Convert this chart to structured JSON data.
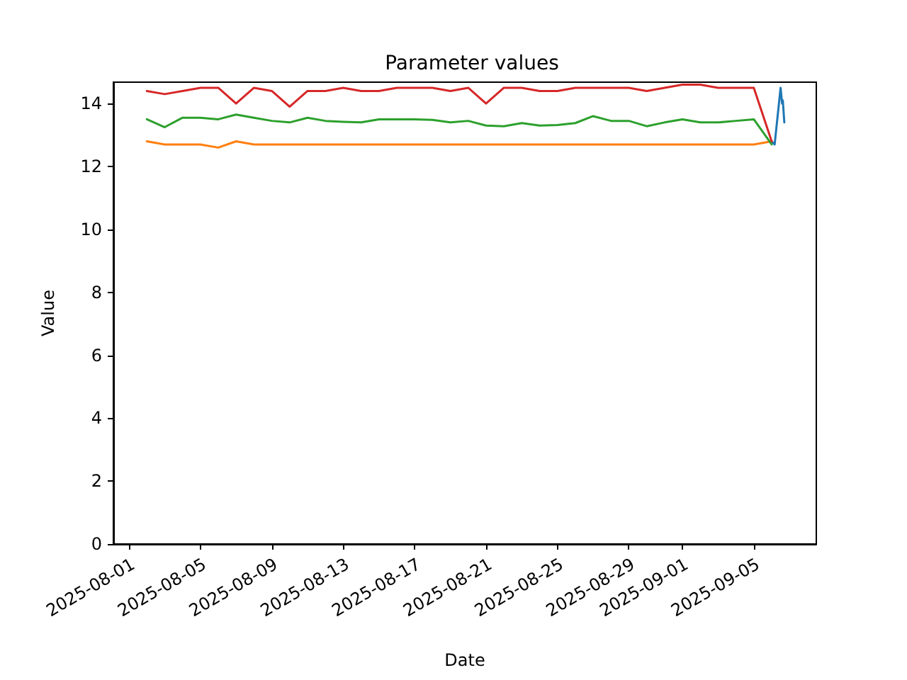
{
  "chart_data": {
    "type": "line",
    "title": "Parameter values",
    "xlabel": "Date",
    "ylabel": "Value",
    "xlim": [
      "2025-07-31T03:00",
      "2025-09-08T12:00"
    ],
    "xticks": [
      "2025-08-01",
      "2025-08-05",
      "2025-08-09",
      "2025-08-13",
      "2025-08-17",
      "2025-08-21",
      "2025-08-25",
      "2025-08-29",
      "2025-09-01",
      "2025-09-05"
    ],
    "ylim": [
      0,
      14.68
    ],
    "yticks": [
      0,
      2,
      4,
      6,
      8,
      10,
      12,
      14
    ],
    "grid": false,
    "marker": "none",
    "line_style": "solid",
    "x": [
      "2025-08-02",
      "2025-08-03",
      "2025-08-04",
      "2025-08-05",
      "2025-08-06",
      "2025-08-07",
      "2025-08-08",
      "2025-08-09",
      "2025-08-10",
      "2025-08-11",
      "2025-08-12",
      "2025-08-13",
      "2025-08-14",
      "2025-08-15",
      "2025-08-16",
      "2025-08-17",
      "2025-08-18",
      "2025-08-19",
      "2025-08-20",
      "2025-08-21",
      "2025-08-22",
      "2025-08-23",
      "2025-08-24",
      "2025-08-25",
      "2025-08-26",
      "2025-08-27",
      "2025-08-28",
      "2025-08-29",
      "2025-08-30",
      "2025-08-31",
      "2025-09-01",
      "2025-09-02",
      "2025-09-03",
      "2025-09-04",
      "2025-09-05",
      "2025-09-06"
    ],
    "series": [
      {
        "color": "#1f77b4",
        "x": [
          "2025-09-06T00:00",
          "2025-09-06T04:00",
          "2025-09-06T12:00",
          "2025-09-06T14:00",
          "2025-09-06T15:00",
          "2025-09-06T17:00"
        ],
        "values": [
          12.8,
          12.7,
          14.5,
          14.0,
          14.1,
          13.4
        ]
      },
      {
        "color": "#ff7f0e",
        "values": [
          12.8,
          12.7,
          12.7,
          12.7,
          12.6,
          12.8,
          12.7,
          12.7,
          12.7,
          12.7,
          12.7,
          12.7,
          12.7,
          12.7,
          12.7,
          12.7,
          12.7,
          12.7,
          12.7,
          12.7,
          12.7,
          12.7,
          12.7,
          12.7,
          12.7,
          12.7,
          12.7,
          12.7,
          12.7,
          12.7,
          12.7,
          12.7,
          12.7,
          12.7,
          12.7,
          12.8
        ]
      },
      {
        "color": "#2ca02c",
        "values": [
          13.5,
          13.25,
          13.55,
          13.55,
          13.5,
          13.65,
          13.55,
          13.45,
          13.4,
          13.55,
          13.45,
          13.42,
          13.4,
          13.5,
          13.5,
          13.5,
          13.48,
          13.4,
          13.45,
          13.3,
          13.28,
          13.38,
          13.3,
          13.32,
          13.38,
          13.6,
          13.45,
          13.45,
          13.28,
          13.4,
          13.5,
          13.4,
          13.4,
          13.45,
          13.5,
          12.7
        ]
      },
      {
        "color": "#d62728",
        "values": [
          14.4,
          14.3,
          14.4,
          14.5,
          14.5,
          14.0,
          14.5,
          14.4,
          13.9,
          14.4,
          14.4,
          14.5,
          14.4,
          14.4,
          14.5,
          14.5,
          14.5,
          14.4,
          14.5,
          14.0,
          14.5,
          14.5,
          14.4,
          14.4,
          14.5,
          14.5,
          14.5,
          14.5,
          14.4,
          14.5,
          14.6,
          14.6,
          14.5,
          14.5,
          14.5,
          12.8
        ]
      }
    ]
  }
}
